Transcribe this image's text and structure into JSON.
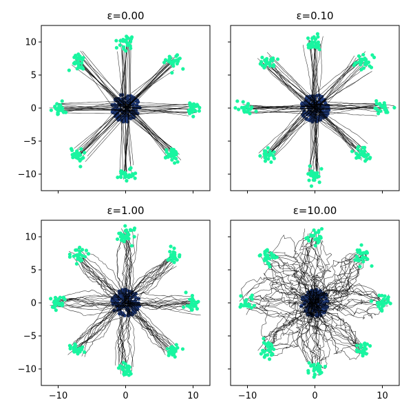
{
  "chart_data": [
    {
      "type": "scatter",
      "title": "ε=0.00",
      "noise": 0.0,
      "xlim": [
        -12.5,
        12.5
      ],
      "ylim": [
        -12.5,
        12.5
      ],
      "xticks": [
        -10,
        0,
        10
      ],
      "yticks": [
        -10,
        -5,
        0,
        5,
        10
      ],
      "xlabel": "",
      "ylabel": "",
      "show_xticklabels": false,
      "show_yticklabels": true,
      "source_points": {
        "center": [
          0,
          0
        ],
        "spread": 1.0,
        "color": "#1f3a7a"
      },
      "target_clusters": [
        [
          10,
          0
        ],
        [
          7.07,
          7.07
        ],
        [
          0,
          10
        ],
        [
          -7.07,
          7.07
        ],
        [
          -10,
          0
        ],
        [
          -7.07,
          -7.07
        ],
        [
          0,
          -10
        ],
        [
          7.07,
          -7.07
        ]
      ],
      "target_color": "#19f5a0",
      "trajectories_per_target": 14,
      "grid": false
    },
    {
      "type": "scatter",
      "title": "ε=0.10",
      "noise": 0.1,
      "xlim": [
        -12.5,
        12.5
      ],
      "ylim": [
        -12.5,
        12.5
      ],
      "xticks": [
        -10,
        0,
        10
      ],
      "yticks": [
        -10,
        -5,
        0,
        5,
        10
      ],
      "xlabel": "",
      "ylabel": "",
      "show_xticklabels": false,
      "show_yticklabels": false,
      "source_points": {
        "center": [
          0,
          0
        ],
        "spread": 1.0,
        "color": "#1f3a7a"
      },
      "target_clusters": [
        [
          10,
          0
        ],
        [
          7.07,
          7.07
        ],
        [
          0,
          10
        ],
        [
          -7.07,
          7.07
        ],
        [
          -10,
          0
        ],
        [
          -7.07,
          -7.07
        ],
        [
          0,
          -10
        ],
        [
          7.07,
          -7.07
        ]
      ],
      "target_color": "#19f5a0",
      "trajectories_per_target": 14,
      "grid": false
    },
    {
      "type": "scatter",
      "title": "ε=1.00",
      "noise": 1.0,
      "xlim": [
        -12.5,
        12.5
      ],
      "ylim": [
        -12.5,
        12.5
      ],
      "xticks": [
        -10,
        0,
        10
      ],
      "yticks": [
        -10,
        -5,
        0,
        5,
        10
      ],
      "xlabel": "",
      "ylabel": "",
      "show_xticklabels": true,
      "show_yticklabels": true,
      "source_points": {
        "center": [
          0,
          0
        ],
        "spread": 1.0,
        "color": "#1f3a7a"
      },
      "target_clusters": [
        [
          10,
          0
        ],
        [
          7.07,
          7.07
        ],
        [
          0,
          10
        ],
        [
          -7.07,
          7.07
        ],
        [
          -10,
          0
        ],
        [
          -7.07,
          -7.07
        ],
        [
          0,
          -10
        ],
        [
          7.07,
          -7.07
        ]
      ],
      "target_color": "#19f5a0",
      "trajectories_per_target": 14,
      "grid": false
    },
    {
      "type": "scatter",
      "title": "ε=10.00",
      "noise": 10.0,
      "xlim": [
        -12.5,
        12.5
      ],
      "ylim": [
        -12.5,
        12.5
      ],
      "xticks": [
        -10,
        0,
        10
      ],
      "yticks": [
        -10,
        -5,
        0,
        5,
        10
      ],
      "xlabel": "",
      "ylabel": "",
      "show_xticklabels": true,
      "show_yticklabels": false,
      "source_points": {
        "center": [
          0,
          0
        ],
        "spread": 1.0,
        "color": "#1f3a7a"
      },
      "target_clusters": [
        [
          10,
          0
        ],
        [
          7.07,
          7.07
        ],
        [
          0,
          10
        ],
        [
          -7.07,
          7.07
        ],
        [
          -10,
          0
        ],
        [
          -7.07,
          -7.07
        ],
        [
          0,
          -10
        ],
        [
          7.07,
          -7.07
        ]
      ],
      "target_color": "#19f5a0",
      "trajectories_per_target": 14,
      "grid": false
    }
  ]
}
